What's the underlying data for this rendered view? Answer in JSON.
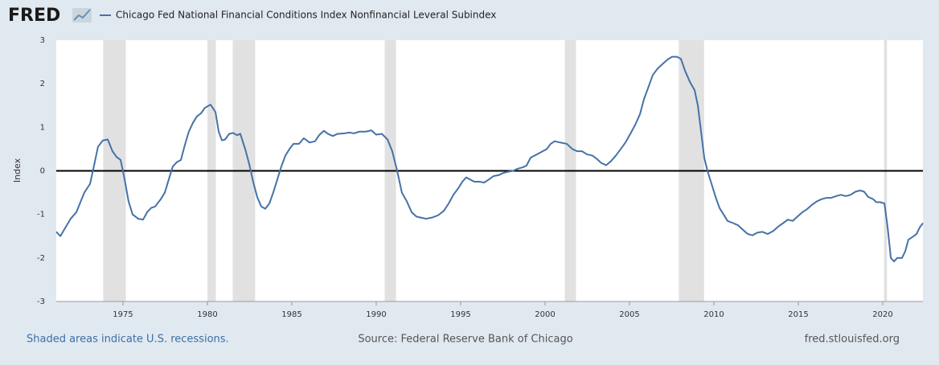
{
  "chart_data": {
    "type": "line",
    "logo": "FRED",
    "title": "Chicago Fed National Financial Conditions Index Nonfinancial Leveral Subindex",
    "y_label": "Index",
    "note": "Shaded areas indicate U.S. recessions.",
    "source": "Source: Federal Reserve Bank of Chicago",
    "site": "fred.stlouisfed.org",
    "xlim": [
      1971.05,
      2022.38
    ],
    "xticks": [
      1975,
      1980,
      1985,
      1990,
      1995,
      2000,
      2005,
      2010,
      2015,
      2020
    ],
    "ylim": [
      -3,
      3
    ],
    "yticks": [
      -3,
      -2,
      -1,
      0,
      1,
      2,
      3
    ],
    "grid": false,
    "reference_line": 0,
    "recessions": [
      [
        1973.83,
        1975.17
      ],
      [
        1980.0,
        1980.5
      ],
      [
        1981.5,
        1982.83
      ],
      [
        1990.5,
        1991.17
      ],
      [
        2001.17,
        2001.83
      ],
      [
        2007.92,
        2009.42
      ],
      [
        2020.08,
        2020.25
      ]
    ],
    "recession_color": "#e1e1e1",
    "x": [
      1971.05,
      1971.29,
      1971.52,
      1971.9,
      1972.24,
      1972.71,
      1973.05,
      1973.33,
      1973.52,
      1973.81,
      1974.1,
      1974.38,
      1974.62,
      1974.86,
      1975.1,
      1975.33,
      1975.57,
      1975.9,
      1976.19,
      1976.43,
      1976.67,
      1976.9,
      1977.24,
      1977.48,
      1977.71,
      1977.95,
      1978.19,
      1978.43,
      1978.67,
      1978.9,
      1979.14,
      1979.38,
      1979.62,
      1979.86,
      1980.19,
      1980.48,
      1980.67,
      1980.86,
      1981.05,
      1981.29,
      1981.52,
      1981.76,
      1981.95,
      1982.24,
      1982.48,
      1982.71,
      1982.95,
      1983.19,
      1983.43,
      1983.67,
      1983.9,
      1984.14,
      1984.38,
      1984.62,
      1984.86,
      1985.1,
      1985.43,
      1985.71,
      1986.05,
      1986.38,
      1986.62,
      1986.9,
      1987.14,
      1987.43,
      1987.71,
      1988.1,
      1988.43,
      1988.67,
      1989.0,
      1989.38,
      1989.71,
      1990.0,
      1990.33,
      1990.67,
      1990.95,
      1991.24,
      1991.52,
      1991.81,
      1992.1,
      1992.38,
      1992.71,
      1992.95,
      1993.33,
      1993.67,
      1994.0,
      1994.29,
      1994.57,
      1994.86,
      1995.1,
      1995.33,
      1995.57,
      1995.81,
      1996.14,
      1996.38,
      1996.67,
      1996.95,
      1997.24,
      1997.52,
      1997.81,
      1998.1,
      1998.38,
      1998.67,
      1998.9,
      1999.14,
      1999.38,
      1999.62,
      1999.86,
      2000.1,
      2000.33,
      2000.57,
      2000.9,
      2001.29,
      2001.62,
      2001.9,
      2002.19,
      2002.48,
      2002.81,
      2003.05,
      2003.33,
      2003.62,
      2003.9,
      2004.19,
      2004.48,
      2004.76,
      2005.05,
      2005.33,
      2005.62,
      2005.86,
      2006.1,
      2006.38,
      2006.67,
      2006.95,
      2007.24,
      2007.52,
      2007.81,
      2008.05,
      2008.29,
      2008.57,
      2008.86,
      2009.05,
      2009.24,
      2009.43,
      2009.62,
      2009.86,
      2010.1,
      2010.33,
      2010.57,
      2010.81,
      2011.14,
      2011.43,
      2011.71,
      2012.0,
      2012.29,
      2012.57,
      2012.86,
      2013.19,
      2013.52,
      2013.81,
      2014.1,
      2014.38,
      2014.67,
      2014.95,
      2015.24,
      2015.52,
      2015.81,
      2016.1,
      2016.38,
      2016.67,
      2016.95,
      2017.24,
      2017.52,
      2017.81,
      2018.1,
      2018.38,
      2018.67,
      2018.9,
      2019.14,
      2019.43,
      2019.62,
      2019.86,
      2020.1,
      2020.29,
      2020.48,
      2020.67,
      2020.86,
      2021.14,
      2021.33,
      2021.52,
      2021.76,
      2022.0,
      2022.19,
      2022.38
    ],
    "series": [
      {
        "name": "Chicago Fed National Financial Conditions Index Nonfinancial Leveral Subindex",
        "color": "#4572a7",
        "values": [
          -1.4,
          -1.5,
          -1.35,
          -1.1,
          -0.95,
          -0.5,
          -0.3,
          0.2,
          0.55,
          0.7,
          0.72,
          0.45,
          0.32,
          0.25,
          -0.2,
          -0.7,
          -1.0,
          -1.1,
          -1.12,
          -0.95,
          -0.85,
          -0.82,
          -0.65,
          -0.5,
          -0.2,
          0.1,
          0.2,
          0.25,
          0.6,
          0.9,
          1.1,
          1.25,
          1.32,
          1.45,
          1.52,
          1.35,
          0.9,
          0.7,
          0.72,
          0.85,
          0.87,
          0.82,
          0.85,
          0.5,
          0.15,
          -0.25,
          -0.6,
          -0.82,
          -0.87,
          -0.75,
          -0.5,
          -0.2,
          0.1,
          0.35,
          0.5,
          0.62,
          0.62,
          0.75,
          0.65,
          0.68,
          0.82,
          0.92,
          0.85,
          0.8,
          0.85,
          0.86,
          0.88,
          0.86,
          0.9,
          0.9,
          0.93,
          0.83,
          0.85,
          0.72,
          0.45,
          0.0,
          -0.5,
          -0.7,
          -0.95,
          -1.05,
          -1.08,
          -1.1,
          -1.07,
          -1.02,
          -0.92,
          -0.75,
          -0.55,
          -0.4,
          -0.25,
          -0.15,
          -0.2,
          -0.25,
          -0.25,
          -0.27,
          -0.2,
          -0.12,
          -0.1,
          -0.05,
          -0.02,
          0.0,
          0.05,
          0.08,
          0.12,
          0.3,
          0.35,
          0.4,
          0.45,
          0.5,
          0.62,
          0.68,
          0.65,
          0.62,
          0.5,
          0.45,
          0.45,
          0.38,
          0.35,
          0.28,
          0.18,
          0.13,
          0.22,
          0.35,
          0.5,
          0.65,
          0.85,
          1.05,
          1.3,
          1.65,
          1.9,
          2.2,
          2.35,
          2.45,
          2.55,
          2.62,
          2.62,
          2.57,
          2.3,
          2.05,
          1.85,
          1.5,
          0.9,
          0.3,
          0.0,
          -0.3,
          -0.6,
          -0.85,
          -1.0,
          -1.15,
          -1.2,
          -1.25,
          -1.35,
          -1.45,
          -1.48,
          -1.42,
          -1.4,
          -1.45,
          -1.38,
          -1.28,
          -1.2,
          -1.12,
          -1.15,
          -1.05,
          -0.95,
          -0.88,
          -0.78,
          -0.7,
          -0.65,
          -0.62,
          -0.62,
          -0.58,
          -0.55,
          -0.58,
          -0.55,
          -0.48,
          -0.45,
          -0.48,
          -0.6,
          -0.65,
          -0.72,
          -0.72,
          -0.75,
          -1.3,
          -2.0,
          -2.08,
          -2.0,
          -2.0,
          -1.85,
          -1.58,
          -1.52,
          -1.45,
          -1.3,
          -1.2
        ]
      }
    ]
  }
}
